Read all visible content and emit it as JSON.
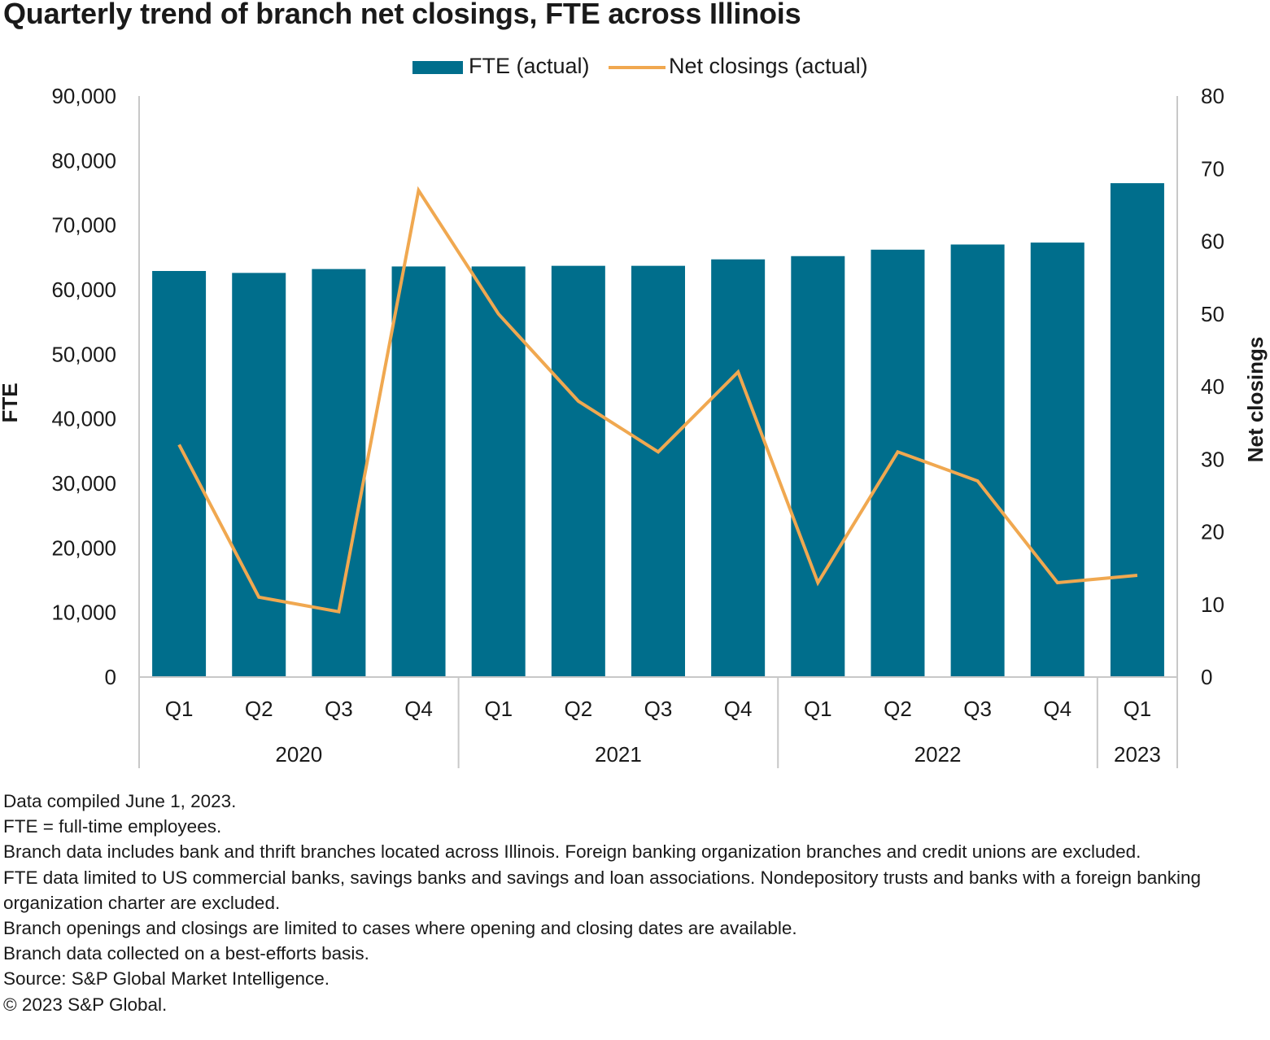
{
  "title": "Quarterly trend of branch net closings, FTE across Illinois",
  "colors": {
    "bar": "#006e8c",
    "line": "#f0a850",
    "axis": "#c8c8c8"
  },
  "chart_data": {
    "type": "bar+line",
    "title": "Quarterly trend of branch net closings, FTE across Illinois",
    "quarters": [
      "Q1",
      "Q2",
      "Q3",
      "Q4",
      "Q1",
      "Q2",
      "Q3",
      "Q4",
      "Q1",
      "Q2",
      "Q3",
      "Q4",
      "Q1"
    ],
    "years": [
      {
        "label": "2020",
        "span": 4
      },
      {
        "label": "2021",
        "span": 4
      },
      {
        "label": "2022",
        "span": 4
      },
      {
        "label": "2023",
        "span": 1
      }
    ],
    "series": [
      {
        "name": "FTE (actual)",
        "type": "bar",
        "axis": "left",
        "values": [
          62900,
          62600,
          63200,
          63600,
          63600,
          63700,
          63700,
          64700,
          65200,
          66200,
          67000,
          67300,
          76500
        ]
      },
      {
        "name": "Net closings (actual)",
        "type": "line",
        "axis": "right",
        "values": [
          32,
          11,
          9,
          67,
          50,
          38,
          31,
          42,
          13,
          31,
          27,
          13,
          14
        ]
      }
    ],
    "left_axis": {
      "label": "FTE",
      "min": 0,
      "max": 90000,
      "step": 10000,
      "ticks": [
        "0",
        "10,000",
        "20,000",
        "30,000",
        "40,000",
        "50,000",
        "60,000",
        "70,000",
        "80,000",
        "90,000"
      ]
    },
    "right_axis": {
      "label": "Net closings",
      "min": 0,
      "max": 80,
      "step": 10,
      "ticks": [
        "0",
        "10",
        "20",
        "30",
        "40",
        "50",
        "60",
        "70",
        "80"
      ]
    },
    "legend_position": "top-center",
    "grid": false
  },
  "notes": [
    "Data compiled June 1, 2023.",
    "FTE = full-time employees.",
    "Branch data includes bank and thrift branches located across Illinois. Foreign banking organization branches and credit unions are excluded.",
    "FTE data limited to US commercial banks, savings banks and savings and loan associations. Nondepository trusts and banks with a foreign banking organization charter are excluded.",
    "Branch openings and closings are limited to cases where opening and closing dates are available.",
    "Branch data collected on a best-efforts basis.",
    "Source: S&P Global Market Intelligence.",
    "© 2023 S&P Global."
  ]
}
